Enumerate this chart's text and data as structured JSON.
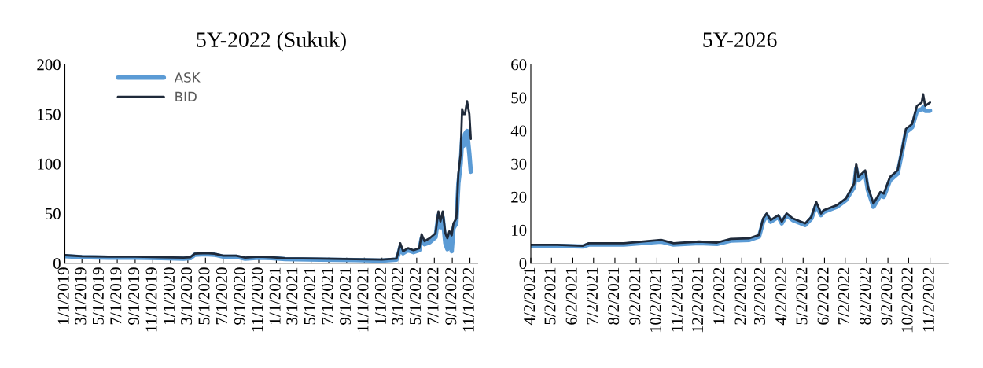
{
  "chart_data": [
    {
      "type": "line",
      "title": "5Y-2022 (Sukuk)",
      "legend": "top left",
      "grid": false,
      "xlim": [
        "2019-01-01",
        "2022-11-28"
      ],
      "ylim": [
        0,
        200
      ],
      "yticks": [
        0,
        50,
        100,
        150,
        200
      ],
      "xticks": [
        {
          "value": "2019-01-01",
          "label": "1/1/2019"
        },
        {
          "value": "2019-03-01",
          "label": "3/1/2019"
        },
        {
          "value": "2019-05-01",
          "label": "5/1/2019"
        },
        {
          "value": "2019-07-01",
          "label": "7/1/2019"
        },
        {
          "value": "2019-09-01",
          "label": "9/1/2019"
        },
        {
          "value": "2019-11-01",
          "label": "11/1/2019"
        },
        {
          "value": "2020-01-01",
          "label": "1/1/2020"
        },
        {
          "value": "2020-03-01",
          "label": "3/1/2020"
        },
        {
          "value": "2020-05-01",
          "label": "5/1/2020"
        },
        {
          "value": "2020-07-01",
          "label": "7/1/2020"
        },
        {
          "value": "2020-09-01",
          "label": "9/1/2020"
        },
        {
          "value": "2020-11-01",
          "label": "11/1/2020"
        },
        {
          "value": "2021-01-01",
          "label": "1/1/2021"
        },
        {
          "value": "2021-03-01",
          "label": "3/1/2021"
        },
        {
          "value": "2021-05-01",
          "label": "5/1/2021"
        },
        {
          "value": "2021-07-01",
          "label": "7/1/2021"
        },
        {
          "value": "2021-09-01",
          "label": "9/1/2021"
        },
        {
          "value": "2021-11-01",
          "label": "11/1/2021"
        },
        {
          "value": "2022-01-01",
          "label": "1/1/2022"
        },
        {
          "value": "2022-03-01",
          "label": "3/1/2022"
        },
        {
          "value": "2022-05-01",
          "label": "5/1/2022"
        },
        {
          "value": "2022-07-01",
          "label": "7/1/2022"
        },
        {
          "value": "2022-09-01",
          "label": "9/1/2022"
        },
        {
          "value": "2022-11-01",
          "label": "11/1/2022"
        }
      ],
      "x": [
        "2019-01-01",
        "2019-03-01",
        "2019-06-01",
        "2019-09-01",
        "2019-12-01",
        "2020-02-15",
        "2020-03-10",
        "2020-03-25",
        "2020-05-01",
        "2020-06-01",
        "2020-07-01",
        "2020-08-15",
        "2020-09-15",
        "2020-11-01",
        "2020-12-15",
        "2021-02-01",
        "2021-06-01",
        "2021-10-01",
        "2022-01-01",
        "2022-02-20",
        "2022-02-27",
        "2022-03-05",
        "2022-03-15",
        "2022-04-01",
        "2022-04-20",
        "2022-05-10",
        "2022-05-18",
        "2022-05-28",
        "2022-06-15",
        "2022-07-05",
        "2022-07-15",
        "2022-07-22",
        "2022-07-30",
        "2022-08-08",
        "2022-08-15",
        "2022-08-22",
        "2022-08-30",
        "2022-09-05",
        "2022-09-15",
        "2022-09-22",
        "2022-09-30",
        "2022-10-05",
        "2022-10-10",
        "2022-10-15",
        "2022-10-22",
        "2022-10-30",
        "2022-11-04"
      ],
      "series": [
        {
          "name": "ASK",
          "color": "#5b9bd5",
          "values": [
            7,
            6,
            5.5,
            5.5,
            5,
            4.5,
            5,
            8.5,
            9,
            8.5,
            6.5,
            6.5,
            4.5,
            5.5,
            5,
            4,
            3.5,
            3,
            2.5,
            3.5,
            9,
            16,
            10,
            13,
            11,
            13,
            25,
            19,
            21,
            26,
            48,
            36,
            46,
            20,
            14,
            28,
            12,
            35,
            40,
            80,
            100,
            125,
            118,
            130,
            133,
            110,
            92
          ]
        },
        {
          "name": "BID",
          "color": "#1f2a3a",
          "values": [
            8,
            7,
            6.5,
            6.5,
            6,
            5.5,
            6,
            9.5,
            10,
            9.5,
            7.5,
            7.5,
            5.5,
            6.5,
            6,
            5,
            4.5,
            4,
            3.5,
            4.5,
            12,
            20,
            12,
            15,
            13,
            15,
            29,
            22,
            25,
            30,
            52,
            42,
            52,
            30,
            25,
            32,
            28,
            40,
            45,
            90,
            110,
            155,
            150,
            150,
            163,
            150,
            125
          ]
        }
      ]
    },
    {
      "type": "line",
      "title": "5Y-2026",
      "grid": false,
      "xlim": [
        "2021-04-02",
        "2022-11-29"
      ],
      "ylim": [
        0,
        60
      ],
      "yticks": [
        0,
        10,
        20,
        30,
        40,
        50,
        60
      ],
      "xticks": [
        {
          "value": "2021-04-02",
          "label": "4/2/2021"
        },
        {
          "value": "2021-05-02",
          "label": "5/2/2021"
        },
        {
          "value": "2021-06-02",
          "label": "6/2/2021"
        },
        {
          "value": "2021-07-02",
          "label": "7/2/2021"
        },
        {
          "value": "2021-08-02",
          "label": "8/2/2021"
        },
        {
          "value": "2021-09-02",
          "label": "9/2/2021"
        },
        {
          "value": "2021-10-02",
          "label": "10/2/2021"
        },
        {
          "value": "2021-11-02",
          "label": "11/2/2021"
        },
        {
          "value": "2021-12-02",
          "label": "12/2/2021"
        },
        {
          "value": "2022-01-02",
          "label": "1/2/2022"
        },
        {
          "value": "2022-02-02",
          "label": "2/2/2022"
        },
        {
          "value": "2022-03-02",
          "label": "3/2/2022"
        },
        {
          "value": "2022-04-02",
          "label": "4/2/2022"
        },
        {
          "value": "2022-05-02",
          "label": "5/2/2022"
        },
        {
          "value": "2022-06-02",
          "label": "6/2/2022"
        },
        {
          "value": "2022-07-02",
          "label": "7/2/2022"
        },
        {
          "value": "2022-08-02",
          "label": "8/2/2022"
        },
        {
          "value": "2022-09-02",
          "label": "9/2/2022"
        },
        {
          "value": "2022-10-02",
          "label": "10/2/2022"
        },
        {
          "value": "2022-11-02",
          "label": "11/2/2022"
        }
      ],
      "x": [
        "2021-04-02",
        "2021-05-10",
        "2021-06-16",
        "2021-06-25",
        "2021-08-15",
        "2021-10-08",
        "2021-10-26",
        "2021-12-02",
        "2021-12-28",
        "2022-01-17",
        "2022-02-13",
        "2022-02-27",
        "2022-03-05",
        "2022-03-10",
        "2022-03-16",
        "2022-03-27",
        "2022-04-01",
        "2022-04-08",
        "2022-04-17",
        "2022-05-05",
        "2022-05-14",
        "2022-05-21",
        "2022-05-28",
        "2022-06-01",
        "2022-06-20",
        "2022-07-03",
        "2022-07-15",
        "2022-07-18",
        "2022-07-21",
        "2022-07-31",
        "2022-08-04",
        "2022-08-12",
        "2022-08-22",
        "2022-08-27",
        "2022-09-05",
        "2022-09-16",
        "2022-09-23",
        "2022-09-28",
        "2022-10-07",
        "2022-10-14",
        "2022-10-21",
        "2022-10-23",
        "2022-10-26",
        "2022-11-02"
      ],
      "series": [
        {
          "color": "#5b9bd5",
          "values": [
            5.2,
            5.2,
            5,
            5.6,
            5.6,
            6.5,
            5.6,
            6,
            5.8,
            6.8,
            7,
            8,
            12.5,
            14.5,
            12.5,
            14,
            12,
            14.5,
            13,
            11.5,
            13.5,
            17.5,
            14.5,
            15.5,
            17,
            19,
            23,
            28.5,
            25,
            27,
            22,
            17,
            20.5,
            20,
            25,
            27,
            34,
            39.5,
            41,
            46,
            46.5,
            47,
            46,
            46
          ]
        },
        {
          "color": "#1f2a3a",
          "values": [
            5.5,
            5.5,
            5.2,
            6,
            6,
            7,
            6,
            6.5,
            6.2,
            7.3,
            7.5,
            8.5,
            13.5,
            15,
            13,
            14.5,
            12.5,
            15,
            13.5,
            12,
            14,
            18.5,
            15,
            16,
            17.5,
            19.5,
            24,
            30,
            26,
            28,
            23,
            18,
            21.5,
            21,
            26,
            28,
            35,
            40.5,
            42,
            47.5,
            48.5,
            51,
            47.5,
            48.5
          ]
        }
      ]
    }
  ]
}
